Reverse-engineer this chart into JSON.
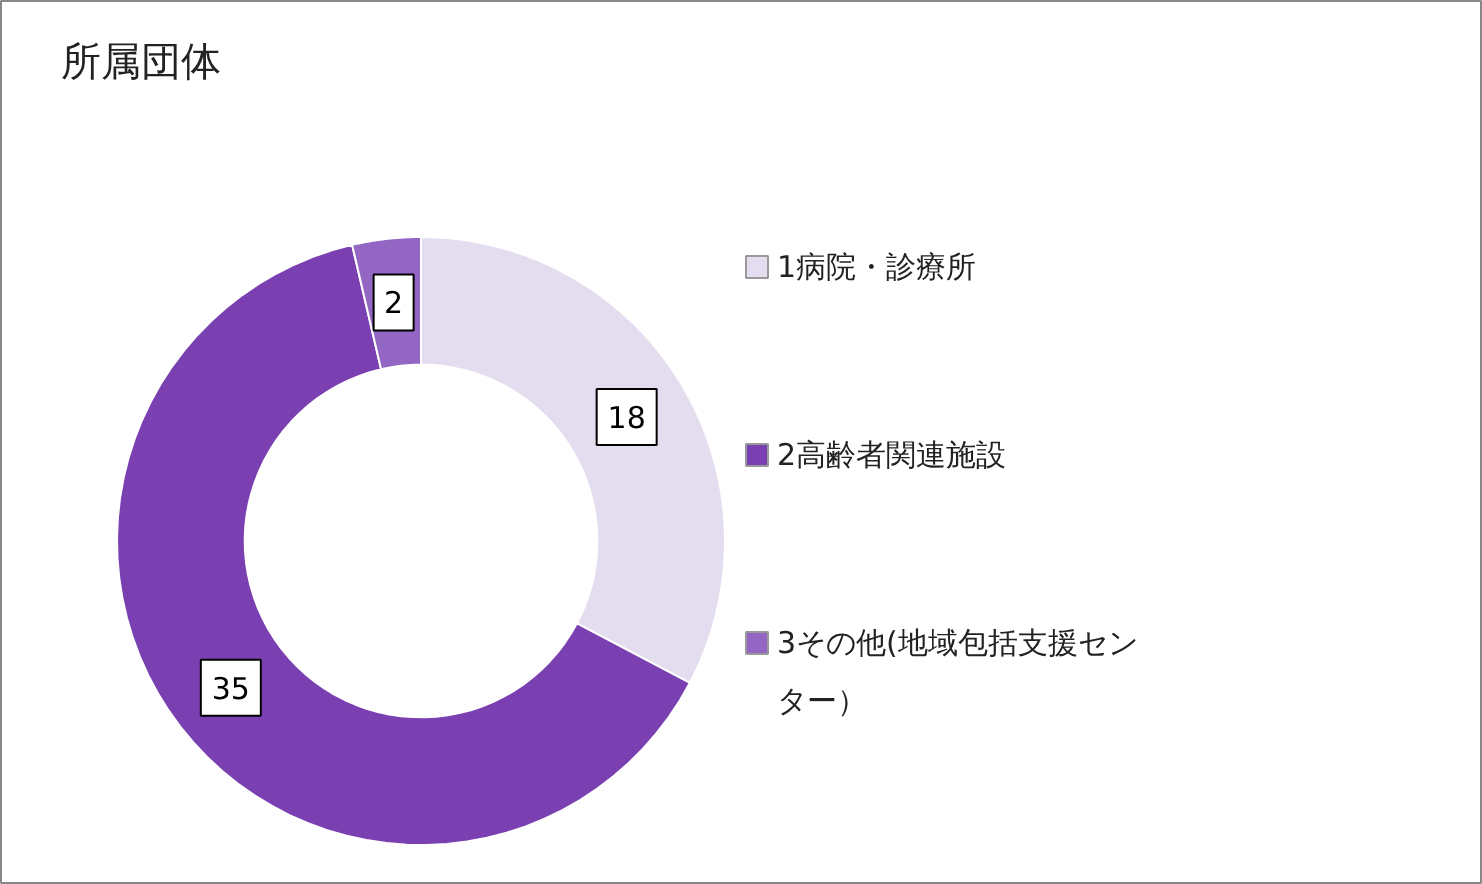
{
  "chart_data": {
    "type": "donut",
    "title": "所属団体",
    "categories": [
      "1病院・診療所",
      "2高齢者関連施設",
      "3その他(地域包括支援センター）"
    ],
    "values": [
      18,
      35,
      2
    ],
    "colors": [
      "#e4dcef",
      "#7a3fb0",
      "#9466c4"
    ],
    "data_labels": true,
    "legend": "right"
  }
}
